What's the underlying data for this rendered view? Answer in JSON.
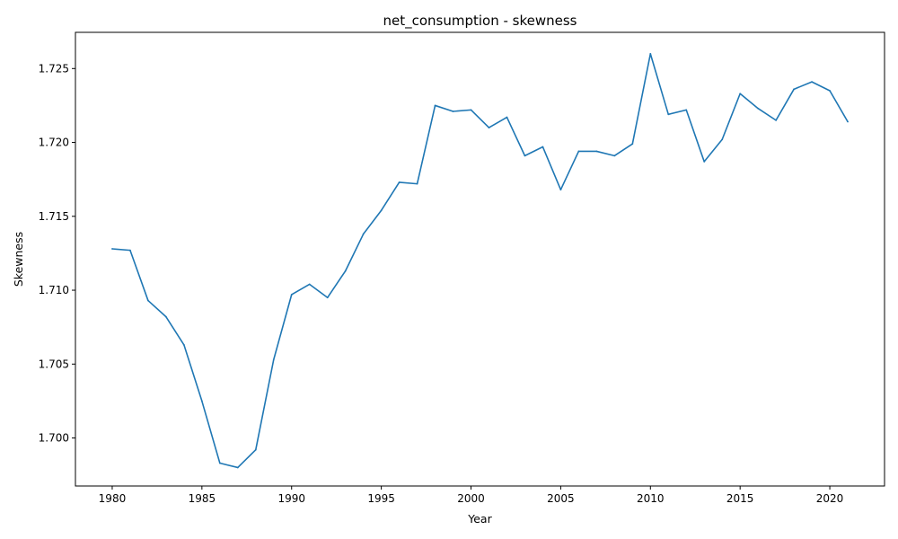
{
  "chart_data": {
    "type": "line",
    "title": "net_consumption - skewness",
    "xlabel": "Year",
    "ylabel": "Skewness",
    "xlim": [
      1977.95,
      2023.05
    ],
    "ylim": [
      1.69675,
      1.72745
    ],
    "xticks": [
      1980,
      1985,
      1990,
      1995,
      2000,
      2005,
      2010,
      2015,
      2020
    ],
    "yticks": [
      1.7,
      1.705,
      1.71,
      1.715,
      1.72,
      1.725
    ],
    "ytick_labels": [
      "1.700",
      "1.705",
      "1.710",
      "1.715",
      "1.720",
      "1.725"
    ],
    "grid": false,
    "series": [
      {
        "color": "#1f77b4",
        "x": [
          1980,
          1981,
          1982,
          1983,
          1984,
          1985,
          1986,
          1987,
          1988,
          1989,
          1990,
          1991,
          1992,
          1993,
          1994,
          1995,
          1996,
          1997,
          1998,
          1999,
          2000,
          2001,
          2002,
          2003,
          2004,
          2005,
          2006,
          2007,
          2008,
          2009,
          2010,
          2011,
          2012,
          2013,
          2014,
          2015,
          2016,
          2017,
          2018,
          2019,
          2020,
          2021
        ],
        "y": [
          1.7128,
          1.7127,
          1.7093,
          1.7082,
          1.7063,
          1.7025,
          1.6983,
          1.698,
          1.6992,
          1.7053,
          1.7097,
          1.7104,
          1.7095,
          1.7113,
          1.7138,
          1.7154,
          1.7173,
          1.7172,
          1.7225,
          1.7221,
          1.7222,
          1.721,
          1.7217,
          1.7191,
          1.7197,
          1.7168,
          1.7194,
          1.7194,
          1.7191,
          1.7199,
          1.726,
          1.7219,
          1.7222,
          1.7187,
          1.7202,
          1.7233,
          1.7223,
          1.7215,
          1.7236,
          1.7241,
          1.7235,
          1.7214
        ]
      }
    ]
  }
}
